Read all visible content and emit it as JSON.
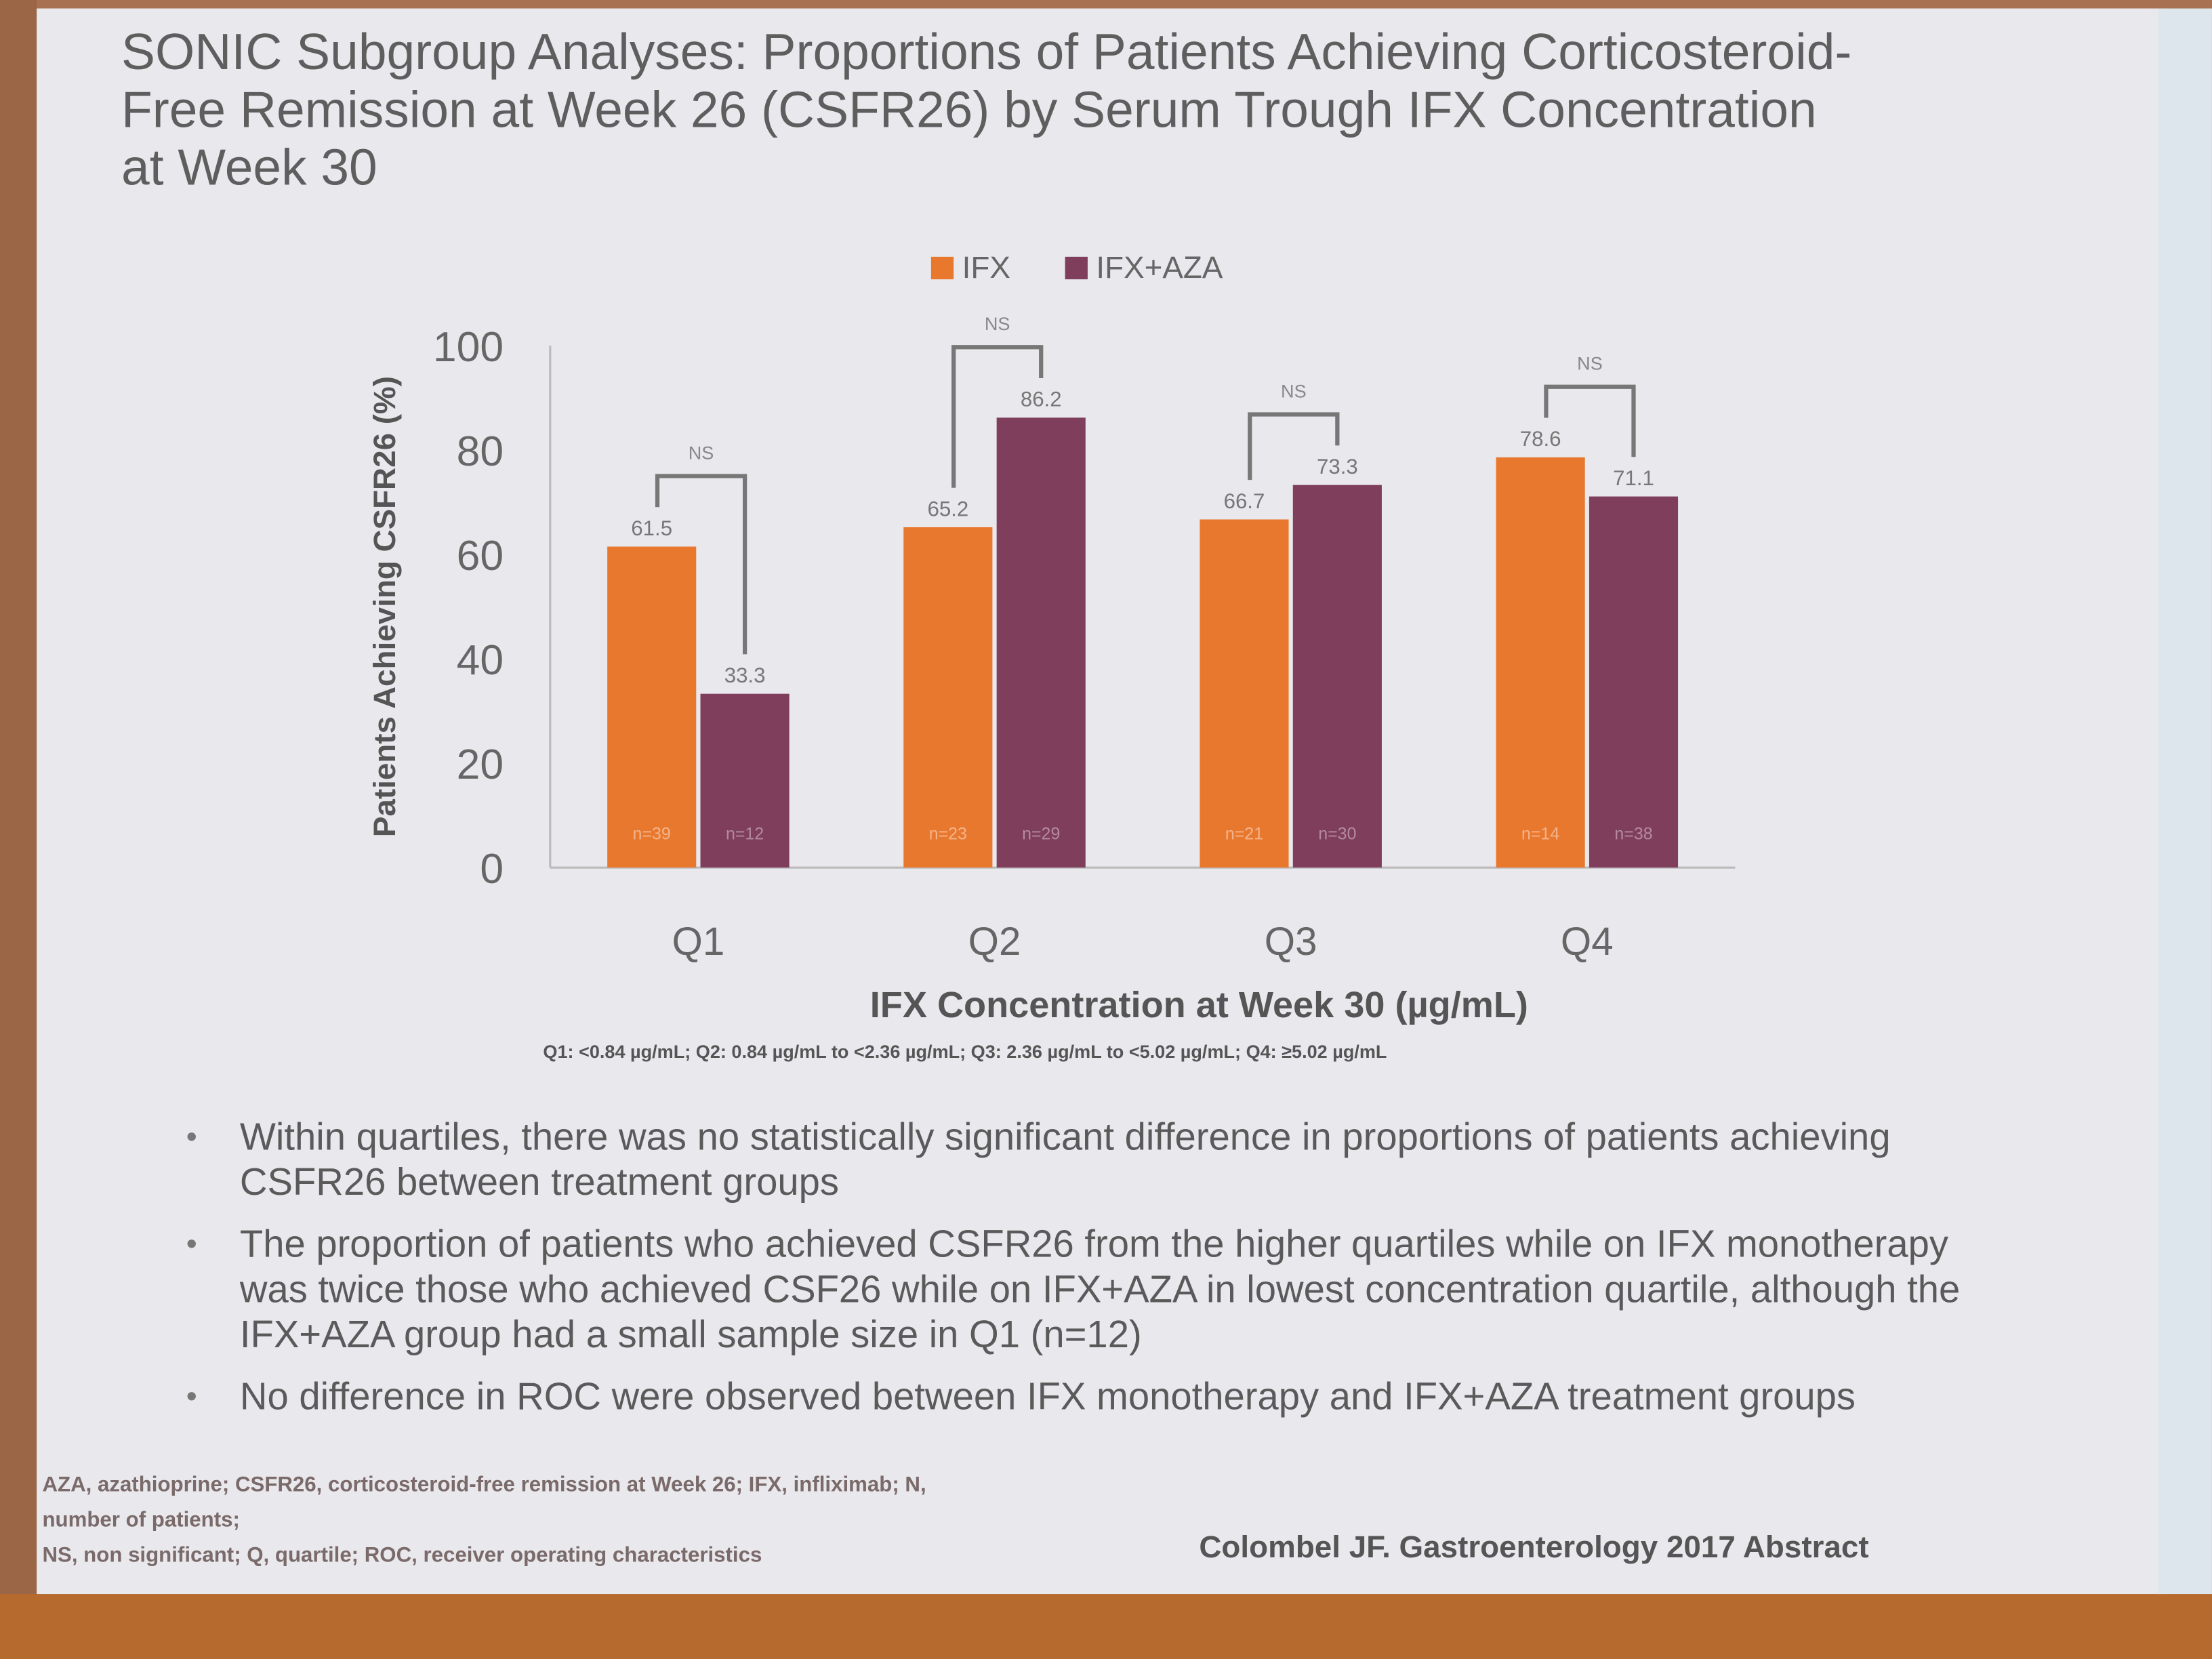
{
  "slide": {
    "title": "SONIC Subgroup Analyses: Proportions of Patients Achieving Corticosteroid-Free Remission at Week 26 (CSFR26) by Serum Trough IFX Concentration at Week 30",
    "quartile_footnote": "Q1: <0.84 µg/mL; Q2: 0.84 µg/mL to <2.36 µg/mL; Q3: 2.36 µg/mL to <5.02 µg/mL; Q4: ≥5.02 µg/mL",
    "bullets": [
      "Within quartiles, there was no statistically significant difference in proportions of patients achieving CSFR26 between treatment groups",
      "The proportion of patients who achieved CSFR26 from the higher quartiles while on IFX monotherapy was twice those who achieved CSF26 while on IFX+AZA in lowest concentration quartile, although the IFX+AZA group had a small sample size in Q1 (n=12)",
      "No difference in ROC were observed between IFX monotherapy and IFX+AZA treatment groups"
    ],
    "abbreviations": [
      "AZA, azathioprine; CSFR26, corticosteroid-free remission at Week 26; IFX, infliximab; N,",
      "number of patients;",
      "NS, non significant; Q, quartile; ROC, receiver operating characteristics"
    ],
    "citation": "Colombel JF. Gastroenterology 2017 Abstract"
  },
  "chart_data": {
    "type": "bar",
    "categories": [
      "Q1",
      "Q2",
      "Q3",
      "Q4"
    ],
    "series": [
      {
        "name": "IFX",
        "color": "#e9782f",
        "values": [
          61.5,
          65.2,
          66.7,
          78.6
        ],
        "labels": [
          "61.5",
          "65.2",
          "66.7",
          "78.6"
        ],
        "n_labels": [
          "n=39",
          "n=23",
          "n=21",
          "n=14"
        ]
      },
      {
        "name": "IFX+AZA",
        "color": "#7e3e5c",
        "values": [
          33.3,
          86.2,
          73.3,
          71.1
        ],
        "labels": [
          "33.3",
          "86.2",
          "73.3",
          "71.1"
        ],
        "n_labels": [
          "n=12",
          "n=29",
          "n=30",
          "n=38"
        ]
      }
    ],
    "significance": [
      "NS",
      "NS",
      "NS",
      "NS"
    ],
    "xlabel": "IFX Concentration at Week 30 (µg/mL)",
    "ylabel": "Patients Achieving CSFR26 (%)",
    "ylim": [
      0,
      100
    ],
    "yticks": [
      0,
      20,
      40,
      60,
      80,
      100
    ],
    "legend_position": "top-center",
    "grid": false
  }
}
